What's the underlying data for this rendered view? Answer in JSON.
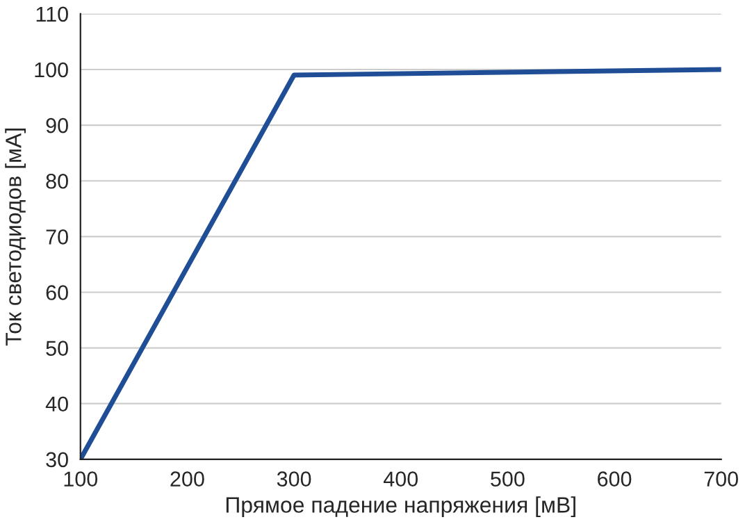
{
  "chart_data": {
    "type": "line",
    "xlabel": "Прямое падение напряжения [мВ]",
    "ylabel": "Ток светодиодов [мА]",
    "x": [
      100,
      300,
      700
    ],
    "series": [
      {
        "color": "#1f4e96",
        "values": [
          30,
          99,
          100
        ]
      }
    ],
    "xlim": [
      100,
      700
    ],
    "xticks": [
      100,
      200,
      300,
      400,
      500,
      600,
      700
    ],
    "ylim": [
      30,
      110
    ],
    "yticks": [
      30,
      40,
      50,
      60,
      70,
      80,
      90,
      100,
      110
    ],
    "grid": "y",
    "marker": "none",
    "line_style": "solid",
    "legend": false
  }
}
